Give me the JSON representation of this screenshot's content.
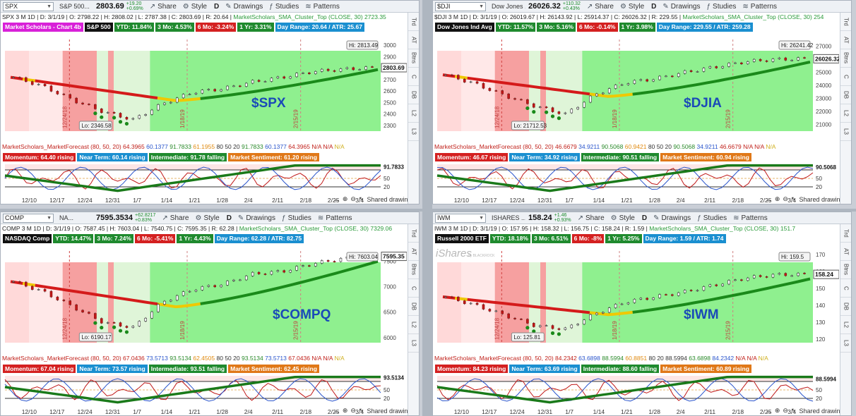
{
  "panels": [
    {
      "symbol": "SPX",
      "name": "S&P 500...",
      "price": "2803.69",
      "chg_abs": "+19.20",
      "chg_pct": "+0.69%",
      "info": "SPX 3 M 1D",
      "date": "D: 3/1/19",
      "ohlc": "O: 2798.22 | H: 2808.02 | L: 2787.38 | C: 2803.69 | R: 20.64 |",
      "sma_name": "MarketScholars_SMA_Cluster_Top (CLOSE, 30)",
      "sma_value": "2723.35",
      "badge_m": "Market Scholars - Chart 4b",
      "badge_name": "S&P 500",
      "ytd": "YTD: 11.84%",
      "mo3": "3 Mo: 4.53%",
      "mo6": "6 Mo: -3.24%",
      "yr1": "1 Yr: 3.31%",
      "dayrange": "Day Range: 20.64 / ATR: 25.67",
      "hi_label": "Hi: 2813.49",
      "lo_label": "Lo: 2346.58",
      "price_tag": "2803.69",
      "big": "$SPX",
      "fc_title": "MarketScholars_MarketForecast (80, 50, 20)",
      "fc_values": [
        "64.3965",
        "60.1377",
        "91.7833",
        "61.1955",
        "80",
        "50",
        "20",
        "91.7833",
        "60.1377",
        "64.3965"
      ],
      "mom": "Momentum: 64.40 rising",
      "near": "Near Term: 60.14 rising",
      "inter": "Intermediate: 91.78 falling",
      "sent": "Market Sentiment: 61.20 rising",
      "osc_tag": "91.7833"
    },
    {
      "symbol": "$DJI",
      "name": "Dow Jones ...",
      "price": "26026.32",
      "chg_abs": "+110.32",
      "chg_pct": "+0.43%",
      "info": "$DJI 3 M 1D",
      "date": "D: 3/1/19",
      "ohlc": "O: 26019.67 | H: 26143.92 | L: 25914.37 | C: 26026.32 | R: 229.55 |",
      "sma_name": "MarketScholars_SMA_Cluster_Top (CLOSE, 30)",
      "sma_value": "254",
      "badge_m": "",
      "badge_name": "Dow Jones Ind Avg",
      "ytd": "YTD: 11.57%",
      "mo3": "3 Mo: 5.16%",
      "mo6": "6 Mo: -0.14%",
      "yr1": "1 Yr: 3.98%",
      "dayrange": "Day Range: 229.55 / ATR: 259.28",
      "hi_label": "Hi: 26241.42",
      "lo_label": "Lo: 21712.53",
      "price_tag": "26026.32",
      "big": "$DJIA",
      "fc_title": "MarketScholars_MarketForecast (80, 50, 20)",
      "fc_values": [
        "46.6679",
        "34.9211",
        "90.5068",
        "60.9421",
        "80",
        "50",
        "20",
        "90.5068",
        "34.9211",
        "46.6679"
      ],
      "mom": "Momentum: 46.67 rising",
      "near": "Near Term: 34.92 rising",
      "inter": "Intermediate: 90.51 falling",
      "sent": "Market Sentiment: 60.94 rising",
      "osc_tag": "90.5068"
    },
    {
      "symbol": "COMP",
      "name": "NA...",
      "price": "7595.3534",
      "chg_abs": "+62.8217",
      "chg_pct": "+0.83%",
      "info": "COMP 3 M 1D",
      "date": "D: 3/1/19",
      "ohlc": "O: 7587.45 | H: 7603.04 | L: 7540.75 | C: 7595.35 | R: 62.28 |",
      "sma_name": "MarketScholars_SMA_Cluster_Top (CLOSE, 30)",
      "sma_value": "7329.06",
      "badge_m": "",
      "badge_name": "NASDAQ Comp",
      "ytd": "YTD: 14.47%",
      "mo3": "3 Mo: 7.24%",
      "mo6": "6 Mo: -5.41%",
      "yr1": "1 Yr: 4.43%",
      "dayrange": "Day Range: 62.28 / ATR: 82.75",
      "hi_label": "Hi: 7603.04",
      "lo_label": "Lo: 6190.17",
      "price_tag": "7595.35",
      "big": "$COMPQ",
      "fc_title": "MarketScholars_MarketForecast (80, 50, 20)",
      "fc_values": [
        "67.0436",
        "73.5713",
        "93.5134",
        "62.4505",
        "80",
        "50",
        "20",
        "93.5134",
        "73.5713",
        "67.0436"
      ],
      "mom": "Momentum: 67.04 rising",
      "near": "Near Term: 73.57 rising",
      "inter": "Intermediate: 93.51 falling",
      "sent": "Market Sentiment: 62.45 rising",
      "osc_tag": "93.5134"
    },
    {
      "symbol": "IWM",
      "name": "ISHARES ...",
      "price": "158.24",
      "chg_abs": "+1.46",
      "chg_pct": "+0.93%",
      "info": "IWM 3 M 1D",
      "date": "D: 3/1/19",
      "ohlc": "O: 157.95 | H: 158.32 | L: 156.75 | C: 158.24 | R: 1.59 |",
      "sma_name": "MarketScholars_SMA_Cluster_Top (CLOSE, 30)",
      "sma_value": "151.7",
      "badge_m": "",
      "badge_name": "Russell 2000 ETF",
      "ytd": "YTD: 18.18%",
      "mo3": "3 Mo: 6.51%",
      "mo6": "6 Mo: -8%",
      "yr1": "1 Yr: 5.25%",
      "dayrange": "Day Range: 1.59 / ATR: 1.74",
      "hi_label": "Hi: 159.5",
      "lo_label": "Lo: 125.81",
      "price_tag": "158.24",
      "big": "$IWM",
      "fc_title": "MarketScholars_MarketForecast (80, 50, 20)",
      "fc_values": [
        "84.2342",
        "63.6898",
        "88.5994",
        "60.8851",
        "80",
        "20",
        "88.5994",
        "63.6898",
        "84.2342"
      ],
      "mom": "Momentum: 84.23 rising",
      "near": "Near Term: 63.69 rising",
      "inter": "Intermediate: 88.60 falling",
      "sent": "Market Sentiment: 60.89 rising",
      "osc_tag": "88.5994"
    }
  ],
  "toolbar": {
    "share": "Share",
    "style": "Style",
    "drawings": "Drawings",
    "studies": "Studies",
    "patterns": "Patterns",
    "period": "D"
  },
  "na": "N/A",
  "shared_drawings": "Shared drawings",
  "rail": [
    "Trd",
    "AT",
    "Btns",
    "C",
    "DB",
    "L2",
    "L3"
  ],
  "osc_levels": [
    "50",
    "20"
  ],
  "ishares_logo": "iShares",
  "ishares_sub": "by BLACKROCK",
  "vertical_dates": [
    "12/24/18",
    "1/18/19",
    "2/15/19"
  ],
  "chart_data": [
    {
      "type": "line",
      "title": "SPX 3 M 1D",
      "x": [
        "12/10",
        "12/17",
        "12/24",
        "12/31",
        "1/7",
        "1/14",
        "1/21",
        "1/28",
        "2/4",
        "2/11",
        "2/18",
        "2/25",
        "3/4"
      ],
      "y_ticks": [
        3000,
        2900,
        2800,
        2700,
        2600,
        2500,
        2400,
        2300
      ],
      "close_trend": [
        2720,
        2640,
        2520,
        2420,
        2350,
        2490,
        2590,
        2620,
        2680,
        2720,
        2770,
        2790,
        2803.69
      ],
      "ylim": [
        2250,
        3050
      ]
    },
    {
      "type": "line",
      "title": "$DJI 3 M 1D",
      "x": [
        "12/10",
        "12/17",
        "12/24",
        "12/31",
        "1/7",
        "1/14",
        "1/21",
        "1/28",
        "2/4",
        "2/11",
        "2/18",
        "2/25",
        "3/4"
      ],
      "y_ticks": [
        27000,
        26000,
        25000,
        24000,
        23000,
        22000,
        21000
      ],
      "close_trend": [
        24800,
        24100,
        23200,
        22400,
        21800,
        23300,
        24200,
        24500,
        25000,
        25400,
        25800,
        25980,
        26026.32
      ],
      "ylim": [
        20500,
        27500
      ]
    },
    {
      "type": "line",
      "title": "COMP 3 M 1D",
      "x": [
        "12/10",
        "12/17",
        "12/24",
        "12/31",
        "1/7",
        "1/14",
        "1/21",
        "1/28",
        "2/4",
        "2/11",
        "2/18",
        "2/25",
        "3/4"
      ],
      "y_ticks": [
        7500,
        7000,
        6500,
        6000
      ],
      "close_trend": [
        7100,
        6900,
        6600,
        6300,
        6200,
        6700,
        6950,
        7050,
        7250,
        7300,
        7450,
        7550,
        7595.35
      ],
      "ylim": [
        5900,
        7700
      ]
    },
    {
      "type": "line",
      "title": "IWM 3 M 1D",
      "x": [
        "12/10",
        "12/17",
        "12/24",
        "12/31",
        "1/7",
        "1/14",
        "1/21",
        "1/28",
        "2/4",
        "2/11",
        "2/18",
        "2/25",
        "3/4"
      ],
      "y_ticks": [
        170,
        160,
        150,
        140,
        130,
        120
      ],
      "close_trend": [
        145,
        140,
        134,
        128,
        126,
        135,
        142,
        145,
        148,
        152,
        156,
        158,
        158.24
      ],
      "ylim": [
        118,
        172
      ]
    }
  ]
}
